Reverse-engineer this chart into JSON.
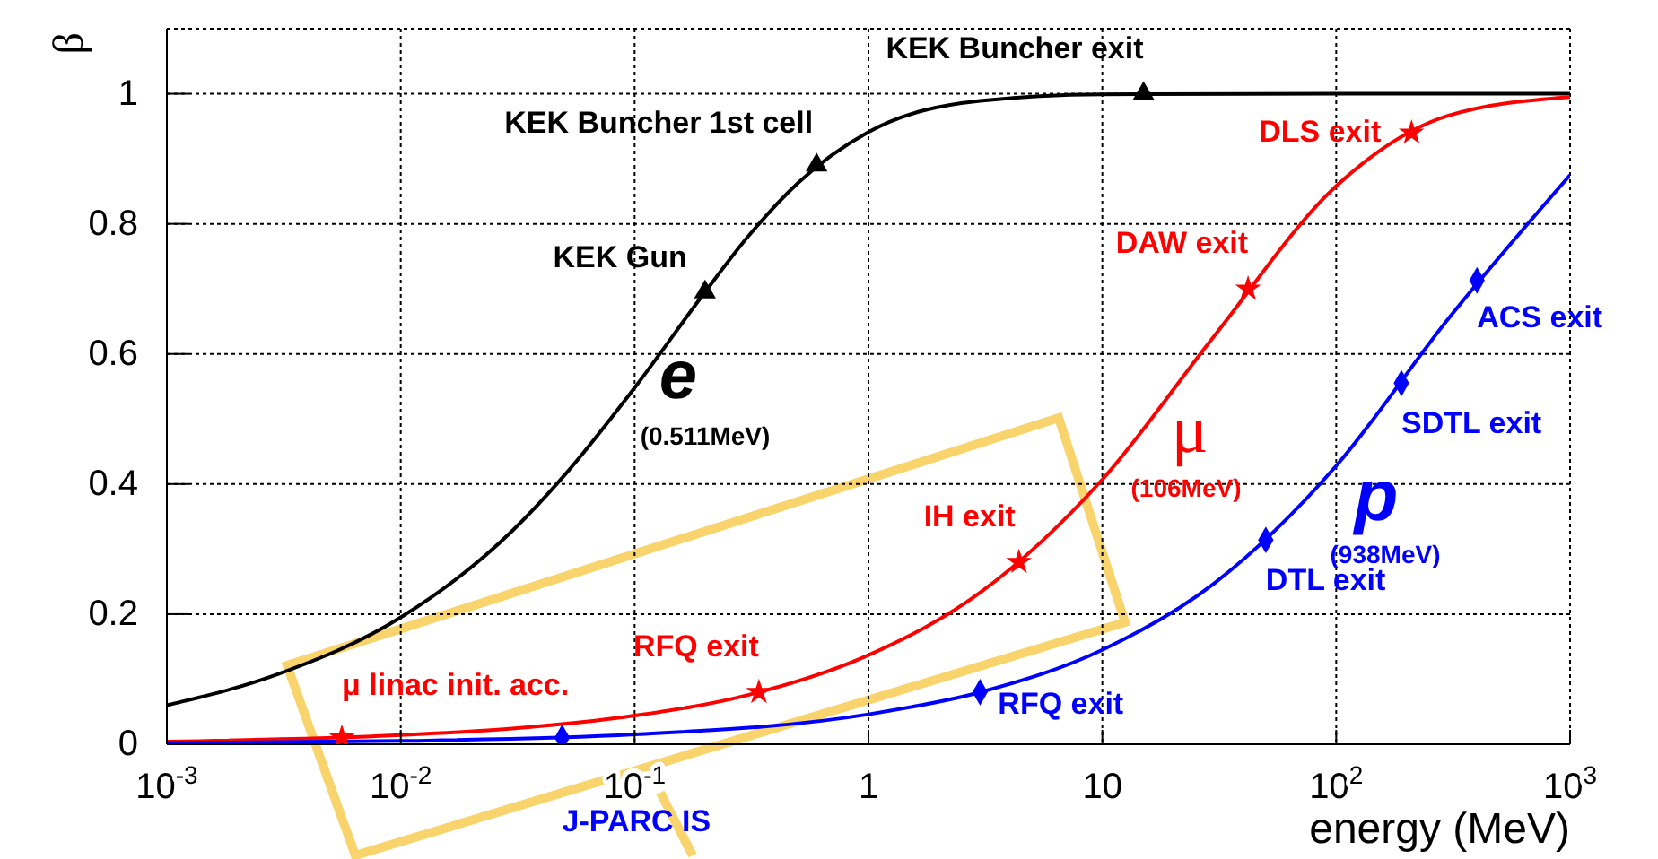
{
  "chart_data": {
    "type": "line",
    "xlabel": "energy (MeV)",
    "ylabel": "β",
    "log": "x",
    "grid": true,
    "xlim": [
      0.001,
      1000
    ],
    "xticks": [
      {
        "value": 0.001,
        "label": "10$^{-3}$"
      },
      {
        "value": 0.01,
        "label": "10$^{-2}$"
      },
      {
        "value": 0.1,
        "label": "10$^{-1}$"
      },
      {
        "value": 1,
        "label": "1"
      },
      {
        "value": 10,
        "label": "10"
      },
      {
        "value": 100,
        "label": "10$^{2}$"
      },
      {
        "value": 1000,
        "label": "10$^{3}$"
      }
    ],
    "ylim": [
      0,
      1.1
    ],
    "yticks": [
      0,
      0.2,
      0.4,
      0.6,
      0.8,
      1
    ],
    "annotations": [
      "(0.511MeV)",
      "(106MeV)",
      "(938MeV)"
    ],
    "series": [
      {
        "name": "e",
        "color": "#000000",
        "x": [
          0.001,
          0.003,
          0.01,
          0.03,
          0.05,
          0.1,
          0.2,
          0.3,
          0.5,
          1,
          3,
          10,
          100,
          1000
        ],
        "values": [
          0.06,
          0.108,
          0.195,
          0.328,
          0.413,
          0.548,
          0.695,
          0.777,
          0.863,
          0.941,
          0.989,
          0.999,
          1,
          1
        ]
      },
      {
        "name": "μ",
        "color": "#ff0000",
        "x": [
          0.001,
          0.01,
          0.03,
          0.1,
          0.3,
          1,
          3,
          10,
          30,
          100,
          300,
          1000
        ],
        "values": [
          0.004,
          0.014,
          0.024,
          0.044,
          0.075,
          0.137,
          0.233,
          0.407,
          0.627,
          0.858,
          0.966,
          0.995
        ]
      },
      {
        "name": "p",
        "color": "#0000ff",
        "x": [
          0.001,
          0.01,
          0.1,
          1,
          3,
          10,
          30,
          100,
          300,
          1000
        ],
        "values": [
          0.002,
          0.005,
          0.015,
          0.046,
          0.08,
          0.145,
          0.247,
          0.428,
          0.653,
          0.875
        ]
      },
      {
        "type": "scatter",
        "marker": "triangle",
        "color": "#000000",
        "x": [
          0.2,
          0.6,
          15
        ],
        "values": [
          0.695,
          0.89,
          1
        ],
        "value_labels": [
          "KEK Gun",
          "KEK Buncher 1st cell",
          "KEK Buncher exit"
        ]
      },
      {
        "type": "scatter",
        "marker": "star",
        "color": "#ff0000",
        "x": [
          0.0056,
          0.34,
          4.4,
          42,
          210
        ],
        "values": [
          0.01,
          0.08,
          0.28,
          0.7,
          0.94
        ],
        "value_labels": [
          "μ linac init. acc.",
          "RFQ exit",
          "IH exit",
          "DAW exit",
          "DLS exit"
        ]
      },
      {
        "type": "scatter",
        "marker": "diamond",
        "color": "#0000ff",
        "x": [
          0.049,
          3,
          50,
          190,
          400
        ],
        "values": [
          0.01,
          0.08,
          0.314,
          0.555,
          0.713
        ],
        "value_labels": [
          "J-PARC IS",
          "RFQ exit",
          "DTL exit",
          "SDTL exit",
          "ACS exit"
        ]
      }
    ]
  }
}
